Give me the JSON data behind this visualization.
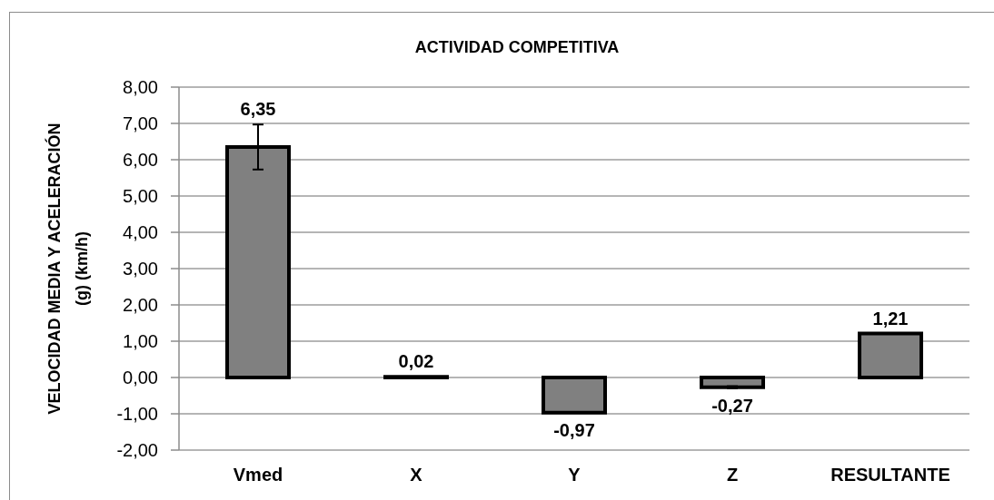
{
  "chart_data": {
    "type": "bar",
    "title": "ACTIVIDAD COMPETITIVA",
    "ylabel": "VELOCIDAD MEDIA Y ACELERACIÓN (g) (km/h)",
    "categories": [
      "Vmed",
      "X",
      "Y",
      "Z",
      "RESULTANTE"
    ],
    "values": [
      6.35,
      0.02,
      -0.97,
      -0.27,
      1.21
    ],
    "value_labels": [
      "6,35",
      "0,02",
      "-0,97",
      "-0,27",
      "1,21"
    ],
    "errors": [
      0.62,
      null,
      null,
      0.03,
      null
    ],
    "color": "#808080",
    "ylim": [
      -2,
      8
    ],
    "yticks": [
      {
        "value": -2,
        "label": "-2,00"
      },
      {
        "value": -1,
        "label": "-1,00"
      },
      {
        "value": 0,
        "label": "0,00"
      },
      {
        "value": 1,
        "label": "1,00"
      },
      {
        "value": 2,
        "label": "2,00"
      },
      {
        "value": 3,
        "label": "3,00"
      },
      {
        "value": 4,
        "label": "4,00"
      },
      {
        "value": 5,
        "label": "5,00"
      },
      {
        "value": 6,
        "label": "6,00"
      },
      {
        "value": 7,
        "label": "7,00"
      },
      {
        "value": 8,
        "label": "8,00"
      }
    ],
    "grid": "y"
  }
}
